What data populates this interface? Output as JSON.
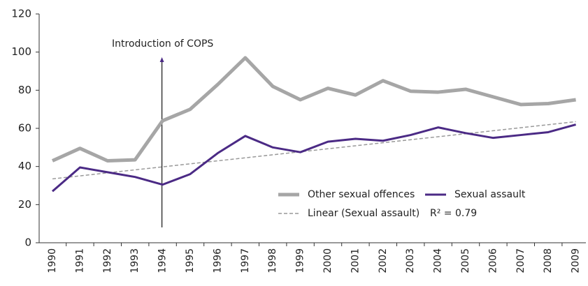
{
  "chart_data": {
    "type": "line",
    "categories": [
      "1990",
      "1991",
      "1992",
      "1993",
      "1994",
      "1995",
      "1996",
      "1997",
      "1998",
      "1999",
      "2000",
      "2001",
      "2002",
      "2003",
      "2004",
      "2005",
      "2006",
      "2007",
      "2008",
      "2009"
    ],
    "series": [
      {
        "name": "Other sexual offences",
        "color": "#a6a6a6",
        "style": "solid",
        "width": 5,
        "values": [
          43,
          49.5,
          43,
          43.5,
          64,
          70,
          83,
          97,
          82,
          75,
          81,
          77.5,
          85,
          79.5,
          79,
          80.5,
          76.5,
          72.5,
          73,
          75
        ]
      },
      {
        "name": "Sexual assault",
        "color": "#4b2a85",
        "style": "solid",
        "width": 3,
        "values": [
          27,
          39.5,
          37,
          34.5,
          30.5,
          36,
          47,
          56,
          50,
          47.5,
          53,
          54.5,
          53.5,
          56.5,
          60.5,
          57.5,
          55,
          56.5,
          58,
          62
        ]
      },
      {
        "name": "Linear (Sexual assault)",
        "color": "#999999",
        "style": "dashed",
        "width": 1.5,
        "values": [
          33.5,
          35.08,
          36.66,
          38.24,
          39.82,
          41.39,
          42.97,
          44.55,
          46.13,
          47.71,
          49.29,
          50.87,
          52.45,
          54.03,
          55.61,
          57.18,
          58.76,
          60.34,
          61.92,
          63.5
        ]
      }
    ],
    "annotations": [
      {
        "text": "Introduction of COPS",
        "x": "1994"
      },
      {
        "text": "R² = 0.79"
      }
    ],
    "ylim": [
      0,
      120
    ],
    "yticks": [
      0,
      20,
      40,
      60,
      80,
      100,
      120
    ],
    "grid": false,
    "legend": "lower right"
  }
}
